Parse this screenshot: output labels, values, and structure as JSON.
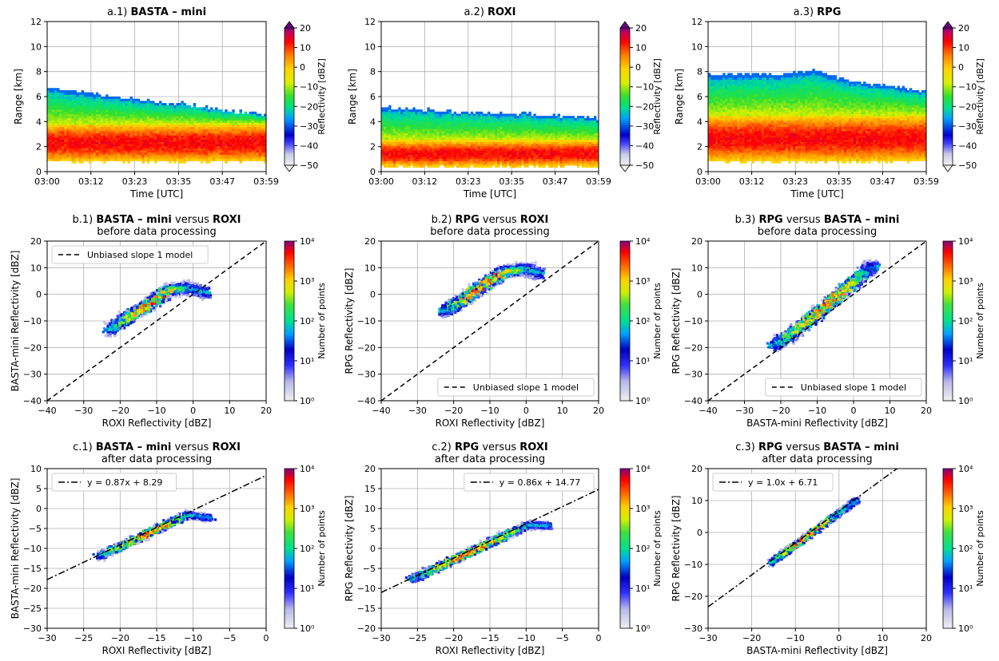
{
  "chart_data": [
    {
      "type": "heatmap",
      "panel_label": "a.1)",
      "title": "BASTA – mini",
      "subtitle": "",
      "xlabel": "Time [UTC]",
      "ylabel": "Range [km]",
      "xticks": [
        "03:00",
        "03:12",
        "03:23",
        "03:35",
        "03:47",
        "03:59"
      ],
      "xlim": [
        0,
        59
      ],
      "ylim": [
        0,
        12
      ],
      "yticks": [
        0,
        2,
        4,
        6,
        8,
        10,
        12
      ],
      "grid": true,
      "profile": {
        "base_km": 0.8,
        "top_km": [
          6.7,
          6.3,
          5.9,
          5.6,
          5.3,
          4.9,
          4.6
        ],
        "core_top_km": 3.8
      },
      "colorbar": {
        "label": "Reflectivity [dBZ]",
        "ticks": [
          -50,
          -40,
          -30,
          -20,
          -10,
          0,
          10,
          20
        ],
        "scale": "linear"
      }
    },
    {
      "type": "heatmap",
      "panel_label": "a.2)",
      "title": "ROXI",
      "subtitle": "",
      "xlabel": "Time [UTC]",
      "ylabel": "Range [km]",
      "xticks": [
        "03:00",
        "03:12",
        "03:23",
        "03:35",
        "03:47",
        "03:59"
      ],
      "xlim": [
        0,
        59
      ],
      "ylim": [
        0,
        12
      ],
      "yticks": [
        0,
        2,
        4,
        6,
        8,
        10,
        12
      ],
      "grid": true,
      "profile": {
        "base_km": 0.4,
        "top_km": [
          5.2,
          5.0,
          4.8,
          4.7,
          4.6,
          4.5,
          4.3
        ],
        "core_top_km": 2.5
      },
      "colorbar": {
        "label": "Reflectivity [dBZ]",
        "ticks": [
          -50,
          -40,
          -30,
          -20,
          -10,
          0,
          10,
          20
        ],
        "scale": "linear"
      }
    },
    {
      "type": "heatmap",
      "panel_label": "a.3)",
      "title": "RPG",
      "subtitle": "",
      "xlabel": "Time [UTC]",
      "ylabel": "Range [km]",
      "xticks": [
        "03:00",
        "03:12",
        "03:23",
        "03:35",
        "03:47",
        "03:59"
      ],
      "xlim": [
        0,
        59
      ],
      "ylim": [
        0,
        12
      ],
      "yticks": [
        0,
        2,
        4,
        6,
        8,
        10,
        12
      ],
      "grid": true,
      "profile": {
        "base_km": 0.8,
        "top_km": [
          7.8,
          7.8,
          7.8,
          8.1,
          7.2,
          6.9,
          6.4
        ],
        "core_top_km": 4.5
      },
      "colorbar": {
        "label": "Reflectivity [dBZ]",
        "ticks": [
          -50,
          -40,
          -30,
          -20,
          -10,
          0,
          10,
          20
        ],
        "scale": "linear"
      }
    },
    {
      "type": "scatter",
      "panel_label": "b.1)",
      "title": "BASTA – mini",
      "title_mid": "versus",
      "title_ref": "ROXI",
      "subtitle": "before data processing",
      "xlabel": "ROXI Reflectivity [dBZ]",
      "ylabel": "BASTA-mini Reflectivity [dBZ]",
      "xlim": [
        -40,
        20
      ],
      "ylim": [
        -40,
        20
      ],
      "xticks": [
        -40,
        -30,
        -20,
        -10,
        0,
        10,
        20
      ],
      "yticks": [
        -40,
        -30,
        -20,
        -10,
        0,
        10,
        20
      ],
      "grid": true,
      "ridge": [
        [
          -23,
          -13
        ],
        [
          -18,
          -8
        ],
        [
          -12,
          -3
        ],
        [
          -7,
          2
        ],
        [
          -2,
          3
        ],
        [
          3,
          1
        ]
      ],
      "reference_line": {
        "style": "dashed",
        "slope": 1,
        "intercept": 0,
        "label": "Unbiased slope 1 model"
      },
      "legend_position": "top-left",
      "colorbar": {
        "label": "Number of points",
        "ticks": [
          "10⁰",
          "10¹",
          "10²",
          "10³",
          "10⁴"
        ],
        "scale": "log"
      }
    },
    {
      "type": "scatter",
      "panel_label": "b.2)",
      "title": "RPG",
      "title_mid": "versus",
      "title_ref": "ROXI",
      "subtitle": "before data processing",
      "xlabel": "ROXI Reflectivity [dBZ]",
      "ylabel": "RPG Reflectivity [dBZ]",
      "xlim": [
        -40,
        20
      ],
      "ylim": [
        -40,
        20
      ],
      "xticks": [
        -40,
        -30,
        -20,
        -10,
        0,
        10,
        20
      ],
      "yticks": [
        -40,
        -30,
        -20,
        -10,
        0,
        10,
        20
      ],
      "grid": true,
      "ridge": [
        [
          -23,
          -6
        ],
        [
          -18,
          -2
        ],
        [
          -12,
          4
        ],
        [
          -6,
          9
        ],
        [
          0,
          10
        ],
        [
          3,
          8
        ]
      ],
      "reference_line": {
        "style": "dashed",
        "slope": 1,
        "intercept": 0,
        "label": "Unbiased slope 1 model"
      },
      "legend_position": "bottom-right",
      "colorbar": {
        "label": "Number of points",
        "ticks": [
          "10⁰",
          "10¹",
          "10²",
          "10³",
          "10⁴"
        ],
        "scale": "log"
      }
    },
    {
      "type": "scatter",
      "panel_label": "b.3)",
      "title": "RPG",
      "title_mid": "versus",
      "title_ref": "BASTA – mini",
      "subtitle": "before data processing",
      "xlabel": "BASTA-mini Reflectivity [dBZ]",
      "ylabel": "RPG Reflectivity [dBZ]",
      "xlim": [
        -40,
        20
      ],
      "ylim": [
        -40,
        20
      ],
      "xticks": [
        -40,
        -30,
        -20,
        -10,
        0,
        10,
        20
      ],
      "yticks": [
        -40,
        -30,
        -20,
        -10,
        0,
        10,
        20
      ],
      "grid": true,
      "ridge": [
        [
          -22,
          -19
        ],
        [
          -15,
          -12
        ],
        [
          -8,
          -4
        ],
        [
          -2,
          3
        ],
        [
          3,
          9
        ],
        [
          5,
          11
        ]
      ],
      "reference_line": {
        "style": "dashed",
        "slope": 1,
        "intercept": 0,
        "label": "Unbiased slope 1 model"
      },
      "legend_position": "bottom-right",
      "colorbar": {
        "label": "Number of points",
        "ticks": [
          "10⁰",
          "10¹",
          "10²",
          "10³",
          "10⁴"
        ],
        "scale": "log"
      }
    },
    {
      "type": "scatter",
      "panel_label": "c.1)",
      "title": "BASTA – mini",
      "title_mid": "versus",
      "title_ref": "ROXI",
      "subtitle": "after data processing",
      "xlabel": "ROXI Reflectivity [dBZ]",
      "ylabel": "BASTA-mini Reflectivity [dBZ]",
      "xlim": [
        -30,
        0
      ],
      "ylim": [
        -30,
        10
      ],
      "xticks": [
        -30,
        -25,
        -20,
        -15,
        -10,
        -5,
        0
      ],
      "yticks": [
        -30,
        -25,
        -20,
        -15,
        -10,
        -5,
        0,
        5,
        10
      ],
      "grid": true,
      "ridge": [
        [
          -23,
          -11.7
        ],
        [
          -20,
          -9.1
        ],
        [
          -17,
          -6.5
        ],
        [
          -14,
          -3.9
        ],
        [
          -11,
          -1.3
        ],
        [
          -8,
          -2
        ]
      ],
      "reference_line": {
        "style": "dashdot",
        "slope": 0.87,
        "intercept": 8.29,
        "label": "y = 0.87x + 8.29"
      },
      "legend_position": "top-left",
      "colorbar": {
        "label": "Number of points",
        "ticks": [
          "10⁰",
          "10¹",
          "10²",
          "10³",
          "10⁴"
        ],
        "scale": "log"
      }
    },
    {
      "type": "scatter",
      "panel_label": "c.2)",
      "title": "RPG",
      "title_mid": "versus",
      "title_ref": "ROXI",
      "subtitle": "after data processing",
      "xlabel": "ROXI Reflectivity [dBZ]",
      "ylabel": "RPG Reflectivity [dBZ]",
      "xlim": [
        -30,
        0
      ],
      "ylim": [
        -20,
        20
      ],
      "xticks": [
        -30,
        -25,
        -20,
        -15,
        -10,
        -5,
        0
      ],
      "yticks": [
        -20,
        -15,
        -10,
        -5,
        0,
        5,
        10,
        15,
        20
      ],
      "grid": true,
      "ridge": [
        [
          -26,
          -7.6
        ],
        [
          -22,
          -4.2
        ],
        [
          -18,
          -0.7
        ],
        [
          -14,
          2.7
        ],
        [
          -10,
          6.2
        ],
        [
          -7,
          6
        ]
      ],
      "reference_line": {
        "style": "dashdot",
        "slope": 0.86,
        "intercept": 14.77,
        "label": "y = 0.86x + 14.77"
      },
      "legend_position": "top-right",
      "colorbar": {
        "label": "Number of points",
        "ticks": [
          "10⁰",
          "10¹",
          "10²",
          "10³",
          "10⁴"
        ],
        "scale": "log"
      }
    },
    {
      "type": "scatter",
      "panel_label": "c.3)",
      "title": "RPG",
      "title_mid": "versus",
      "title_ref": "BASTA – mini",
      "subtitle": "after data processing",
      "xlabel": "BASTA-mini Reflectivity [dBZ]",
      "ylabel": "RPG Reflectivity [dBZ]",
      "xlim": [
        -30,
        20
      ],
      "ylim": [
        -30,
        20
      ],
      "xticks": [
        -30,
        -20,
        -10,
        0,
        10,
        20
      ],
      "yticks": [
        -30,
        -20,
        -10,
        0,
        10,
        20
      ],
      "grid": true,
      "ridge": [
        [
          -16,
          -9.3
        ],
        [
          -12,
          -5.3
        ],
        [
          -8,
          -1.3
        ],
        [
          -4,
          2.7
        ],
        [
          0,
          6.7
        ],
        [
          4,
          10.7
        ]
      ],
      "reference_line": {
        "style": "dashdot",
        "slope": 1.0,
        "intercept": 6.71,
        "label": "y = 1.0x + 6.71"
      },
      "legend_position": "top-left",
      "colorbar": {
        "label": "Number of points",
        "ticks": [
          "10⁰",
          "10¹",
          "10²",
          "10³",
          "10⁴"
        ],
        "scale": "log"
      }
    }
  ]
}
